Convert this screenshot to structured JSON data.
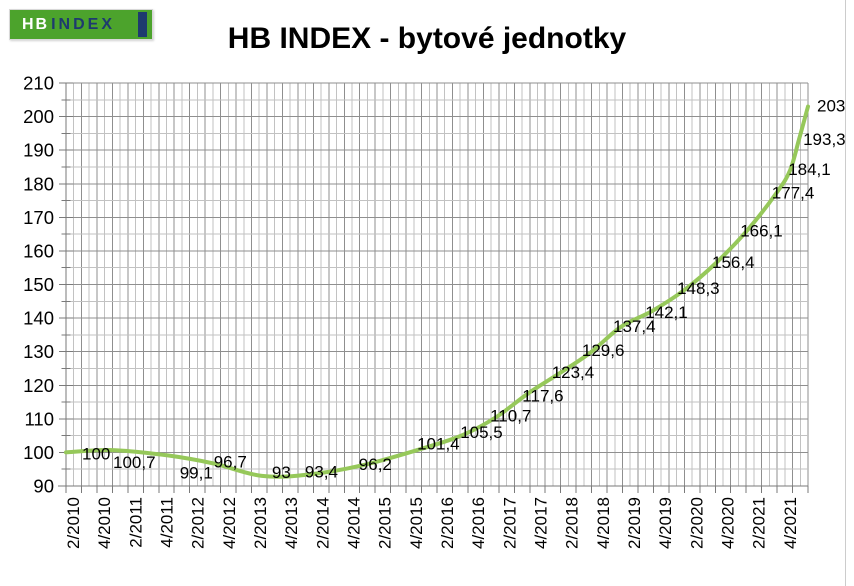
{
  "logo": {
    "text_hb": "HB",
    "text_index": "INDEX",
    "background_color": "#4CA32C",
    "hb_color": "#ffffff",
    "index_color": "#1E3A6F",
    "bar_color": "#1E3A6F"
  },
  "title": "HB INDEX - bytové jednotky",
  "chart_data": {
    "type": "line",
    "title": "HB INDEX - bytové jednotky",
    "line_color": "#96C85A",
    "grid": true,
    "legend_position": "none",
    "y_axis": {
      "min": 90,
      "max": 210,
      "major_step": 10,
      "minor_step": 5,
      "tick_labels": [
        "210",
        "200",
        "190",
        "180",
        "170",
        "160",
        "150",
        "140",
        "130",
        "120",
        "110",
        "100",
        "90"
      ]
    },
    "x_axis": {
      "tick_labels": [
        "2/2010",
        "4/2010",
        "2/2011",
        "4/2011",
        "2/2012",
        "4/2012",
        "2/2013",
        "4/2013",
        "2/2014",
        "4/2014",
        "2/2015",
        "4/2015",
        "2/2016",
        "4/2016",
        "2/2017",
        "4/2017",
        "2/2018",
        "4/2018",
        "2/2019",
        "4/2019",
        "2/2020",
        "4/2020",
        "2/2021",
        "4/2021"
      ]
    },
    "points": [
      {
        "label": "100",
        "value": 100,
        "x": 0.0
      },
      {
        "label": "100,7",
        "value": 100.7,
        "x": 0.062
      },
      {
        "label": "99,1",
        "value": 99.1,
        "x": 0.137
      },
      {
        "label": "96,7",
        "value": 96.7,
        "x": 0.199
      },
      {
        "label": "93",
        "value": 93,
        "x": 0.264
      },
      {
        "label": "93,4",
        "value": 93.4,
        "x": 0.326
      },
      {
        "label": "96,2",
        "value": 96.2,
        "x": 0.4
      },
      {
        "label": "101,4",
        "value": 101.4,
        "x": 0.484
      },
      {
        "label": "105,5",
        "value": 105.5,
        "x": 0.538
      },
      {
        "label": "110,7",
        "value": 110.7,
        "x": 0.581
      },
      {
        "label": "117,6",
        "value": 117.6,
        "x": 0.623
      },
      {
        "label": "123,4",
        "value": 123.4,
        "x": 0.664
      },
      {
        "label": "129,6",
        "value": 129.6,
        "x": 0.706
      },
      {
        "label": "137,4",
        "value": 137.4,
        "x": 0.748
      },
      {
        "label": "142,1",
        "value": 142.1,
        "x": 0.79
      },
      {
        "label": "148,3",
        "value": 148.3,
        "x": 0.833
      },
      {
        "label": "156,4",
        "value": 156.4,
        "x": 0.876
      },
      {
        "label": "166,1",
        "value": 166.1,
        "x": 0.918
      },
      {
        "label": "177,4",
        "value": 177.4,
        "x": 0.958
      },
      {
        "label": "184,1",
        "value": 184.1,
        "x": 0.976
      },
      {
        "label": "193,3",
        "value": 193.3,
        "x": 0.988
      },
      {
        "label": "203",
        "value": 203,
        "x": 1.0
      }
    ]
  }
}
